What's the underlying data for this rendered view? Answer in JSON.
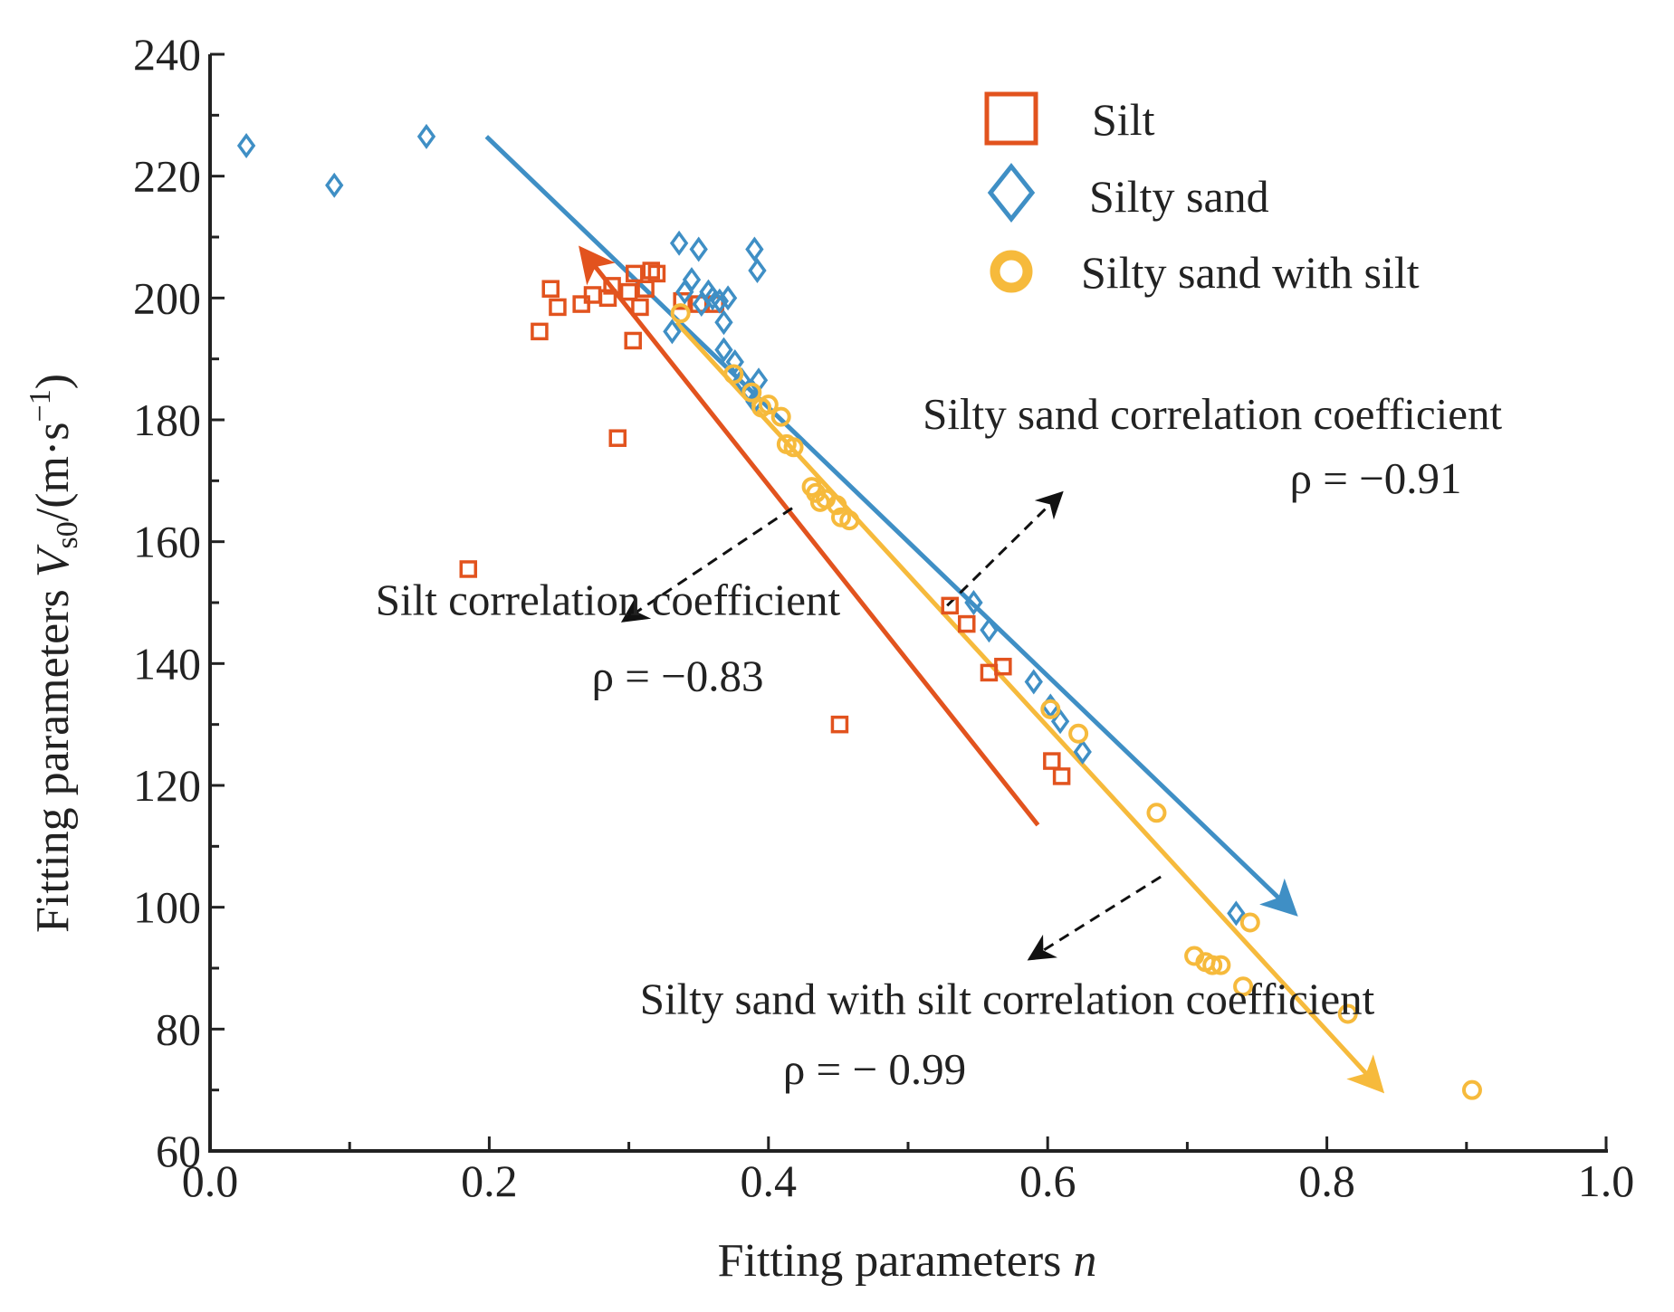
{
  "chart_data": {
    "type": "scatter",
    "title": "",
    "xlabel_prefix": "Fitting parameters ",
    "xlabel_var": "n",
    "ylabel_prefix": "Fitting parameters ",
    "ylabel_var": "V",
    "ylabel_sub": "s0",
    "ylabel_unit_open": "/(m·s",
    "ylabel_unit_sup": "−1",
    "ylabel_unit_close": ")",
    "xlim": [
      0.0,
      1.0
    ],
    "ylim": [
      60,
      240
    ],
    "x_major_ticks": [
      0.0,
      0.2,
      0.4,
      0.6,
      0.8,
      1.0
    ],
    "x_tick_labels": [
      "0.0",
      "0.2",
      "0.4",
      "0.6",
      "0.8",
      "1.0"
    ],
    "y_major_ticks": [
      60,
      80,
      100,
      120,
      140,
      160,
      180,
      200,
      220,
      240
    ],
    "y_tick_labels": [
      "60",
      "80",
      "100",
      "120",
      "140",
      "160",
      "180",
      "200",
      "220",
      "240"
    ],
    "grid": false,
    "legend_position": "top-right",
    "series": [
      {
        "name": "Silt",
        "marker": "square",
        "color": "#E2531E",
        "points": [
          [
            0.185,
            155.5
          ],
          [
            0.236,
            194.5
          ],
          [
            0.244,
            201.5
          ],
          [
            0.249,
            198.5
          ],
          [
            0.266,
            199.0
          ],
          [
            0.274,
            200.5
          ],
          [
            0.285,
            200.0
          ],
          [
            0.288,
            202.0
          ],
          [
            0.292,
            177.0
          ],
          [
            0.3,
            201.0
          ],
          [
            0.304,
            204.0
          ],
          [
            0.303,
            193.0
          ],
          [
            0.308,
            198.5
          ],
          [
            0.312,
            201.5
          ],
          [
            0.316,
            204.5
          ],
          [
            0.32,
            204.0
          ],
          [
            0.338,
            199.5
          ],
          [
            0.35,
            199.0
          ],
          [
            0.362,
            199.0
          ],
          [
            0.451,
            130.0
          ],
          [
            0.53,
            149.5
          ],
          [
            0.542,
            146.5
          ],
          [
            0.558,
            138.5
          ],
          [
            0.568,
            139.5
          ],
          [
            0.603,
            124.0
          ],
          [
            0.61,
            121.5
          ]
        ],
        "trend": {
          "from": [
            0.593,
            113.5
          ],
          "to": [
            0.266,
            208.0
          ]
        },
        "correlation_label": "Silt correlation coefficient",
        "rho_label": "ρ = −0.83"
      },
      {
        "name": "Silty sand",
        "marker": "diamond",
        "color": "#3F8FC5",
        "points": [
          [
            0.026,
            225.0
          ],
          [
            0.089,
            218.5
          ],
          [
            0.155,
            226.5
          ],
          [
            0.331,
            194.5
          ],
          [
            0.336,
            209.0
          ],
          [
            0.34,
            201.0
          ],
          [
            0.345,
            203.0
          ],
          [
            0.35,
            208.0
          ],
          [
            0.352,
            199.0
          ],
          [
            0.357,
            201.0
          ],
          [
            0.36,
            200.0
          ],
          [
            0.365,
            199.5
          ],
          [
            0.368,
            196.0
          ],
          [
            0.371,
            200.0
          ],
          [
            0.368,
            191.5
          ],
          [
            0.376,
            189.5
          ],
          [
            0.381,
            186.5
          ],
          [
            0.387,
            184.5
          ],
          [
            0.39,
            208.0
          ],
          [
            0.392,
            204.5
          ],
          [
            0.393,
            186.5
          ],
          [
            0.39,
            183.0
          ],
          [
            0.547,
            150.0
          ],
          [
            0.558,
            145.5
          ],
          [
            0.59,
            137.0
          ],
          [
            0.602,
            133.0
          ],
          [
            0.609,
            130.5
          ],
          [
            0.625,
            125.5
          ],
          [
            0.735,
            99.0
          ]
        ],
        "trend": {
          "from": [
            0.198,
            226.5
          ],
          "to": [
            0.777,
            99.0
          ]
        },
        "correlation_label": "Silty sand correlation coefficient",
        "rho_label": "ρ = −0.91"
      },
      {
        "name": "Silty sand with silt",
        "marker": "circle",
        "color": "#F6BA3C",
        "points": [
          [
            0.337,
            197.5
          ],
          [
            0.375,
            187.5
          ],
          [
            0.388,
            184.5
          ],
          [
            0.395,
            182.0
          ],
          [
            0.4,
            182.5
          ],
          [
            0.409,
            180.5
          ],
          [
            0.413,
            176.0
          ],
          [
            0.418,
            175.5
          ],
          [
            0.431,
            169.0
          ],
          [
            0.434,
            168.0
          ],
          [
            0.437,
            166.5
          ],
          [
            0.441,
            167.0
          ],
          [
            0.449,
            166.0
          ],
          [
            0.452,
            164.0
          ],
          [
            0.458,
            163.5
          ],
          [
            0.602,
            132.5
          ],
          [
            0.622,
            128.5
          ],
          [
            0.678,
            115.5
          ],
          [
            0.705,
            92.0
          ],
          [
            0.713,
            91.0
          ],
          [
            0.718,
            90.5
          ],
          [
            0.724,
            90.5
          ],
          [
            0.74,
            87.0
          ],
          [
            0.745,
            97.5
          ],
          [
            0.815,
            82.5
          ],
          [
            0.904,
            70.0
          ]
        ],
        "trend": {
          "from": [
            0.334,
            196.0
          ],
          "to": [
            0.839,
            70.0
          ]
        },
        "correlation_label": "Silty sand with silt correlation coefficient",
        "rho_label": "ρ = − 0.99"
      }
    ],
    "annotations": [
      {
        "text_key": 0,
        "text_anchor": [
          0.285,
          148.0
        ],
        "rho_anchor": [
          0.335,
          135.5
        ],
        "arrow_from": [
          0.417,
          165.5
        ],
        "arrow_to": [
          0.296,
          147.0
        ]
      },
      {
        "text_key": 1,
        "text_anchor": [
          0.718,
          178.5
        ],
        "rho_anchor": [
          0.835,
          168.0
        ],
        "arrow_from": [
          0.528,
          149.5
        ],
        "arrow_to": [
          0.61,
          168.0
        ]
      },
      {
        "text_key": 2,
        "text_anchor": [
          0.571,
          82.5
        ],
        "rho_anchor": [
          0.476,
          71.0
        ],
        "arrow_from": [
          0.681,
          105.0
        ],
        "arrow_to": [
          0.587,
          91.5
        ]
      }
    ]
  }
}
